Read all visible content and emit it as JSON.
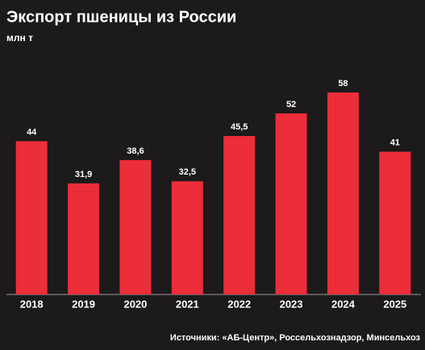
{
  "chart_data": {
    "type": "bar",
    "title": "Экспорт пшеницы из России",
    "subtitle": "млн т",
    "categories": [
      "2018",
      "2019",
      "2020",
      "2021",
      "2022",
      "2023",
      "2024",
      "2025"
    ],
    "values": [
      44,
      31.9,
      38.6,
      32.5,
      45.5,
      52,
      58,
      41
    ],
    "value_labels": [
      "44",
      "31,9",
      "38,6",
      "32,5",
      "45,5",
      "52",
      "58",
      "41"
    ],
    "color": "#ec2d3a",
    "ylim": [
      0,
      70
    ],
    "source": "Источники: «АБ-Центр», Россельхознадзор, Минсельхоз"
  }
}
